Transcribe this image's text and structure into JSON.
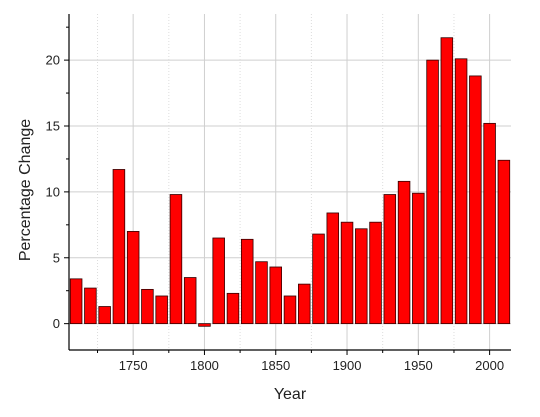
{
  "chart_data": {
    "type": "bar",
    "xlabel": "Year",
    "ylabel": "Percentage Change",
    "x": [
      1710,
      1720,
      1730,
      1740,
      1750,
      1760,
      1770,
      1780,
      1790,
      1800,
      1810,
      1820,
      1830,
      1840,
      1850,
      1860,
      1870,
      1880,
      1890,
      1900,
      1910,
      1920,
      1930,
      1940,
      1950,
      1960,
      1970,
      1980,
      1990,
      2000,
      2010
    ],
    "values": [
      3.4,
      2.7,
      1.3,
      11.7,
      7.0,
      2.6,
      2.1,
      9.8,
      3.5,
      -0.2,
      6.5,
      2.3,
      6.4,
      4.7,
      4.3,
      2.1,
      3.0,
      6.8,
      8.4,
      7.7,
      7.2,
      7.7,
      9.8,
      10.8,
      9.9,
      20.0,
      21.7,
      20.1,
      18.8,
      15.2,
      12.4
    ],
    "xlim": [
      1705,
      2015
    ],
    "ylim": [
      -2,
      23.5
    ],
    "xticks": [
      1750,
      1800,
      1850,
      1900,
      1950,
      2000
    ],
    "xtick_labels": [
      "1750",
      "1800",
      "1850",
      "1900",
      "1950",
      "2000"
    ],
    "yticks": [
      0,
      5,
      10,
      15,
      20
    ],
    "ytick_labels": [
      "0",
      "5",
      "10",
      "15",
      "20"
    ],
    "grid": true,
    "bar_color": "#ff0000",
    "bar_edge_color": "#330000"
  }
}
